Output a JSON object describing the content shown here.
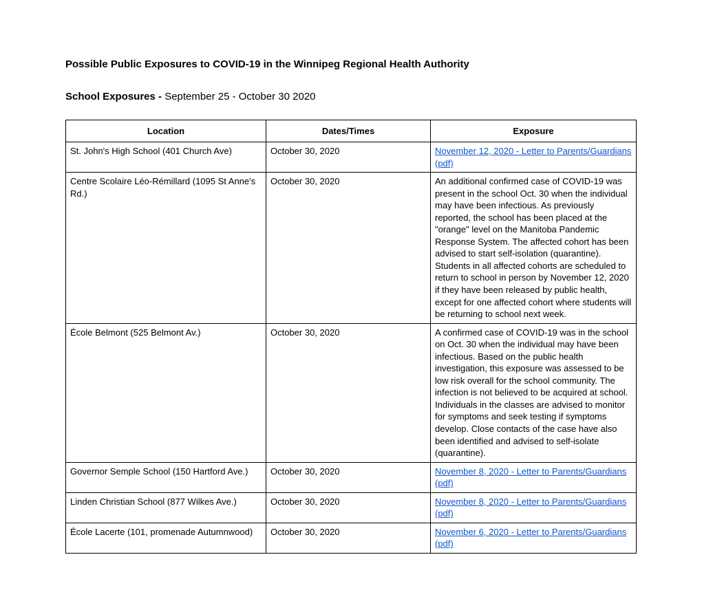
{
  "title": "Possible Public Exposures to COVID-19 in the Winnipeg Regional Health Authority",
  "section_label": "School Exposures - ",
  "section_daterange": "September 25 - October 30 2020",
  "table": {
    "columns": [
      "Location",
      "Dates/Times",
      "Exposure"
    ],
    "rows": [
      {
        "location": "St. John's High School (401 Church Ave)",
        "dates": "October 30, 2020",
        "exposure_type": "link",
        "exposure_text": "November 12, 2020 - Letter to Parents/Guardians (pdf)"
      },
      {
        "location": "Centre Scolaire Léo-Rémillard (1095 St Anne's Rd.)",
        "dates": "October 30, 2020",
        "exposure_type": "text",
        "exposure_text": "An additional confirmed case of COVID-19 was present in the school Oct. 30 when the individual may have been infectious. As previously reported, the school has been placed at the \"orange\" level on the Manitoba Pandemic Response System. The affected cohort has been advised to start self-isolation (quarantine). Students in all affected cohorts are scheduled to return to school in person by November 12, 2020 if they have been released by public health, except for one affected cohort where students will be returning to school next week."
      },
      {
        "location": "École Belmont (525 Belmont Av.)",
        "dates": "October 30, 2020",
        "exposure_type": "text",
        "exposure_text": "A confirmed case of COVID-19 was in the school on Oct. 30 when the individual may have been infectious. Based on the public health investigation, this exposure was assessed to be low risk overall for the school community. The infection is not believed to be acquired at school. Individuals in the classes are advised to monitor for symptoms and seek testing if symptoms develop. Close contacts of the case have also been identified and advised to self-isolate (quarantine)."
      },
      {
        "location": "Governor Semple School (150 Hartford Ave.)",
        "dates": "October 30, 2020",
        "exposure_type": "link",
        "exposure_text": "November 8, 2020 - Letter to Parents/Guardians (pdf)"
      },
      {
        "location": "Linden Christian School (877 Wilkes Ave.)",
        "dates": "October 30, 2020",
        "exposure_type": "link",
        "exposure_text": "November 8, 2020 - Letter to Parents/Guardians (pdf)"
      },
      {
        "location": "École Lacerte (101, promenade Autumnwood)",
        "dates": "October 30, 2020",
        "exposure_type": "link",
        "exposure_text": "November 6, 2020 - Letter to Parents/Guardians (pdf)"
      }
    ]
  }
}
